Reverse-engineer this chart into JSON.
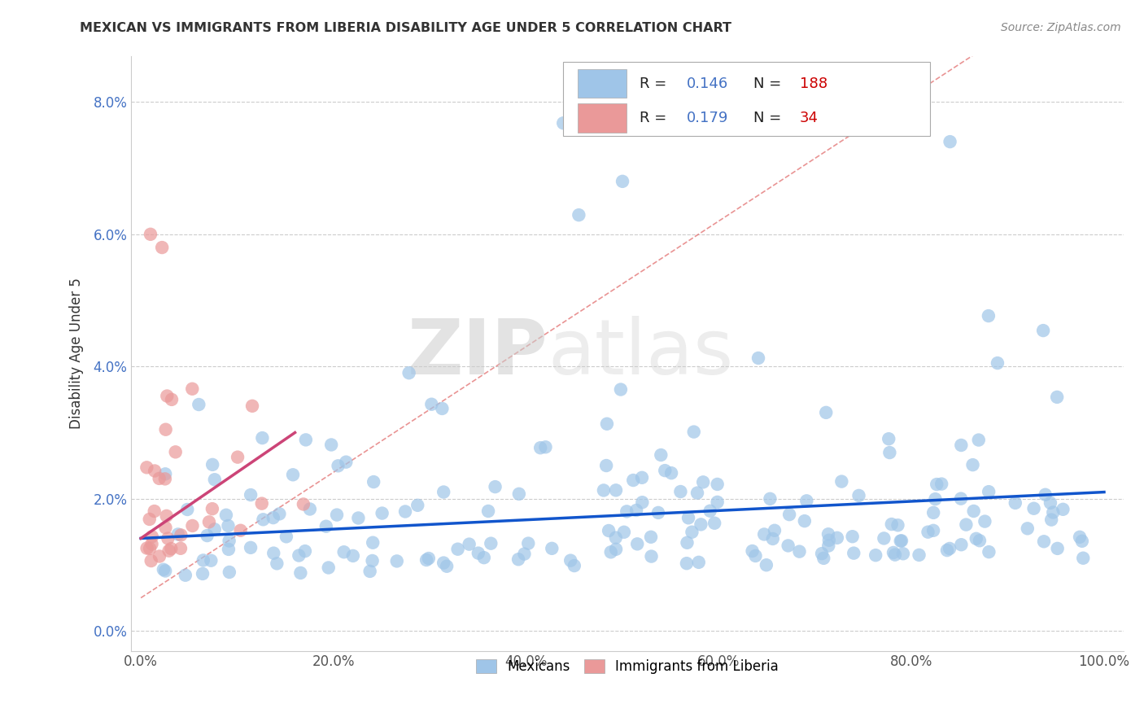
{
  "title": "MEXICAN VS IMMIGRANTS FROM LIBERIA DISABILITY AGE UNDER 5 CORRELATION CHART",
  "source_text": "Source: ZipAtlas.com",
  "ylabel": "Disability Age Under 5",
  "xlim": [
    0.0,
    1.0
  ],
  "ylim": [
    0.0,
    0.085
  ],
  "ytick_labels": [
    "0.0%",
    "2.0%",
    "4.0%",
    "6.0%",
    "8.0%"
  ],
  "ytick_values": [
    0.0,
    0.02,
    0.04,
    0.06,
    0.08
  ],
  "xtick_labels": [
    "0.0%",
    "20.0%",
    "40.0%",
    "60.0%",
    "80.0%",
    "100.0%"
  ],
  "xtick_values": [
    0.0,
    0.2,
    0.4,
    0.6,
    0.8,
    1.0
  ],
  "legend_labels": [
    "Mexicans",
    "Immigrants from Liberia"
  ],
  "blue_R": 0.146,
  "blue_N": 188,
  "pink_R": 0.179,
  "pink_N": 34,
  "blue_color": "#9fc5e8",
  "pink_color": "#ea9999",
  "blue_line_color": "#1155cc",
  "pink_line_color": "#cc4477",
  "watermark_zip": "ZIP",
  "watermark_atlas": "atlas",
  "seed": 17
}
